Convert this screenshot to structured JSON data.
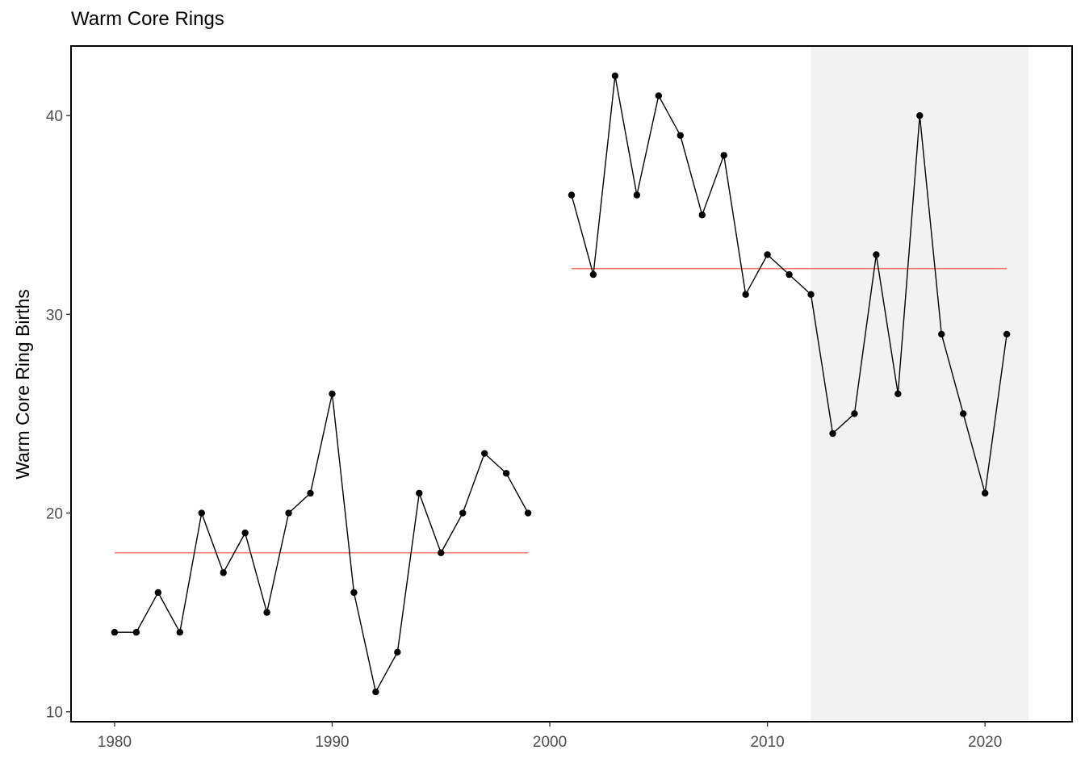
{
  "chart_data": {
    "type": "line",
    "title": "Warm Core Rings",
    "xlabel": "",
    "ylabel": "Warm Core Ring Births",
    "xlim": [
      1978,
      2024
    ],
    "ylim": [
      9.5,
      43.5
    ],
    "x_ticks": [
      1980,
      1990,
      2000,
      2010,
      2020
    ],
    "y_ticks": [
      10,
      20,
      30,
      40
    ],
    "grid": false,
    "series": [
      {
        "x": [
          1980,
          1981,
          1982,
          1983,
          1984,
          1985,
          1986,
          1987,
          1988,
          1989,
          1990,
          1991,
          1992,
          1993,
          1994,
          1995,
          1996,
          1997,
          1998,
          1999,
          2000,
          2001,
          2002,
          2003,
          2004,
          2005,
          2006,
          2007,
          2008,
          2009,
          2010,
          2011,
          2012,
          2013,
          2014,
          2015,
          2016,
          2017,
          2018,
          2019,
          2020,
          2021
        ],
        "y": [
          14,
          14,
          16,
          14,
          20,
          17,
          19,
          15,
          20,
          21,
          26,
          16,
          11,
          13,
          21,
          18,
          20,
          23,
          22,
          20,
          null,
          36,
          32,
          42,
          36,
          41,
          39,
          35,
          38,
          31,
          33,
          32,
          31,
          24,
          25,
          33,
          26,
          40,
          29,
          25,
          21,
          29
        ],
        "color": "#000000"
      }
    ],
    "mean_lines": [
      {
        "x_start": 1980,
        "x_end": 1999,
        "y": 18.0,
        "color": "#f8766d"
      },
      {
        "x_start": 2001,
        "x_end": 2021,
        "y": 32.3,
        "color": "#f8766d"
      }
    ],
    "shaded_region": {
      "x_start": 2012,
      "x_end": 2022,
      "color": "#f2f2f2"
    }
  }
}
